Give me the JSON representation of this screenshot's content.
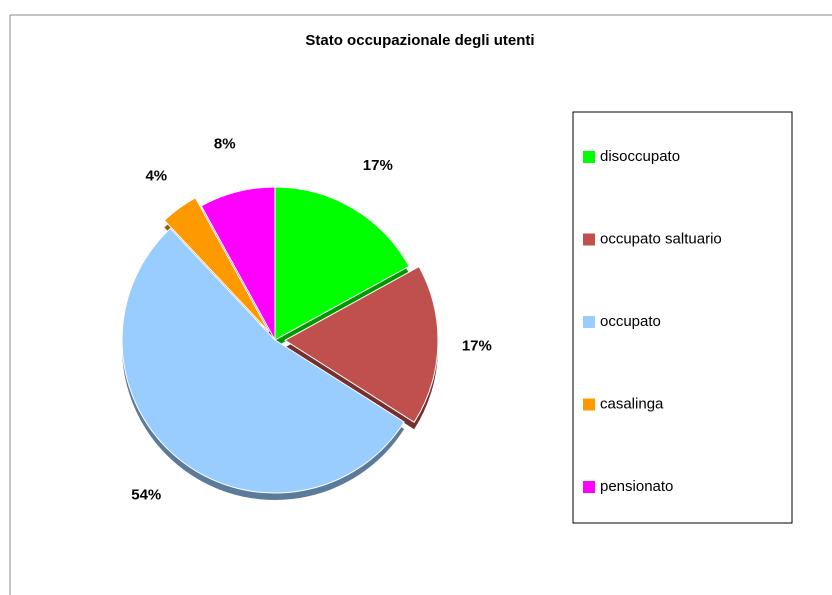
{
  "chart_data": {
    "type": "pie",
    "title": "Stato occupazionale degli utenti",
    "categories": [
      "disoccupato",
      "occupato saltuario",
      "occupato",
      "casalinga",
      "pensionato"
    ],
    "values": [
      17,
      17,
      54,
      4,
      8
    ],
    "value_labels": [
      "17%",
      "17%",
      "54%",
      "4%",
      "8%"
    ],
    "colors": [
      "#00ff00",
      "#c0504d",
      "#99ccff",
      "#ff9900",
      "#ff00ff"
    ],
    "legend": "right"
  }
}
